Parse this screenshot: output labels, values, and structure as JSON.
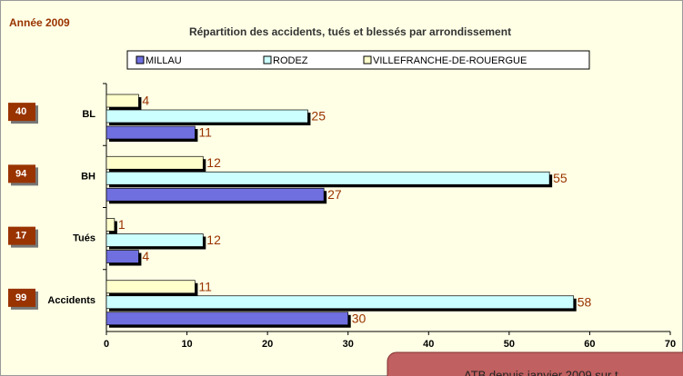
{
  "chart_data": {
    "type": "barh",
    "corner_label": "Année 2009",
    "title": "Répartition des accidents, tués et blessés par arrondissement",
    "categories": [
      "BL",
      "BH",
      "Tués",
      "Accidents"
    ],
    "totals": [
      40,
      94,
      17,
      99
    ],
    "series": [
      {
        "name": "MILLAU",
        "color": "#6f6fe0",
        "values": [
          11,
          27,
          4,
          30
        ]
      },
      {
        "name": "RODEZ",
        "color": "#ccffff",
        "values": [
          25,
          55,
          12,
          58
        ]
      },
      {
        "name": "VILLEFRANCHE-DE-ROUERGUE",
        "color": "#ffffcc",
        "values": [
          4,
          12,
          1,
          11
        ]
      }
    ],
    "xlim": [
      0,
      70
    ],
    "xticks": [
      0,
      10,
      20,
      30,
      40,
      50,
      60,
      70
    ],
    "note": "ATB depuis janvier 2009 sur t"
  }
}
